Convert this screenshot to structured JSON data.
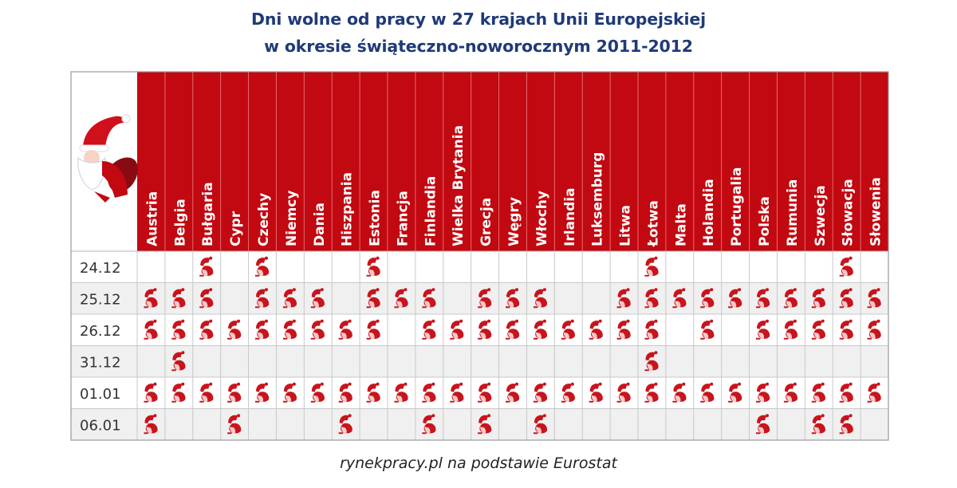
{
  "title_line1": "Dni wolne od pracy w 27 krajach Unii Europejskiej",
  "title_line2": "w okresie świąteczno-noworocznym 2011-2012",
  "source": "rynekpracy.pl na podstawie Eurostat",
  "colors": {
    "header": "#c20810",
    "title": "#1f3a78",
    "grid": "#c8c8c8",
    "stripe": "#f0f0f0",
    "marker": "#c8141c"
  },
  "icons": {
    "header": "santa-claus-icon",
    "marker": "santa-marker-icon"
  },
  "chart_data": {
    "type": "table",
    "columns": [
      "Austria",
      "Belgia",
      "Bułgaria",
      "Cypr",
      "Czechy",
      "Niemcy",
      "Dania",
      "Hiszpania",
      "Estonia",
      "Francja",
      "Finlandia",
      "Wielka Brytania",
      "Grecja",
      "Węgry",
      "Włochy",
      "Irlandia",
      "Luksemburg",
      "Litwa",
      "Łotwa",
      "Malta",
      "Holandia",
      "Portugalia",
      "Polska",
      "Rumunia",
      "Szwecja",
      "Słowacja",
      "Słowenia"
    ],
    "rows": [
      "24.12",
      "25.12",
      "26.12",
      "31.12",
      "01.01",
      "06.01"
    ],
    "holidays": {
      "24.12": [
        "Bułgaria",
        "Czechy",
        "Estonia",
        "Łotwa",
        "Słowacja"
      ],
      "25.12": [
        "Austria",
        "Belgia",
        "Bułgaria",
        "Czechy",
        "Niemcy",
        "Dania",
        "Estonia",
        "Francja",
        "Finlandia",
        "Grecja",
        "Węgry",
        "Włochy",
        "Litwa",
        "Łotwa",
        "Malta",
        "Holandia",
        "Portugalia",
        "Polska",
        "Rumunia",
        "Szwecja",
        "Słowacja",
        "Słowenia"
      ],
      "26.12": [
        "Austria",
        "Belgia",
        "Bułgaria",
        "Cypr",
        "Czechy",
        "Niemcy",
        "Dania",
        "Hiszpania",
        "Estonia",
        "Finlandia",
        "Wielka Brytania",
        "Grecja",
        "Węgry",
        "Włochy",
        "Irlandia",
        "Luksemburg",
        "Litwa",
        "Łotwa",
        "Holandia",
        "Polska",
        "Rumunia",
        "Szwecja",
        "Słowacja",
        "Słowenia"
      ],
      "31.12": [
        "Belgia",
        "Łotwa"
      ],
      "01.01": [
        "Austria",
        "Belgia",
        "Bułgaria",
        "Cypr",
        "Czechy",
        "Niemcy",
        "Dania",
        "Hiszpania",
        "Estonia",
        "Francja",
        "Finlandia",
        "Wielka Brytania",
        "Grecja",
        "Węgry",
        "Włochy",
        "Irlandia",
        "Luksemburg",
        "Litwa",
        "Łotwa",
        "Malta",
        "Holandia",
        "Portugalia",
        "Polska",
        "Rumunia",
        "Szwecja",
        "Słowacja",
        "Słowenia"
      ],
      "06.01": [
        "Austria",
        "Cypr",
        "Hiszpania",
        "Finlandia",
        "Grecja",
        "Włochy",
        "Polska",
        "Szwecja",
        "Słowacja"
      ]
    }
  }
}
